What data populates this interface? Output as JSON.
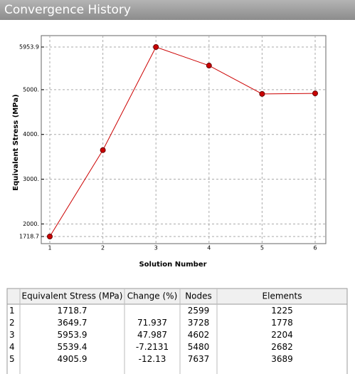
{
  "header": {
    "title": "Convergence History"
  },
  "chart_data": {
    "type": "line",
    "ylabel": "Equivalent Stress  (MPa)",
    "xlabel": "Solution Number",
    "x": [
      1,
      2,
      3,
      4,
      5,
      6
    ],
    "series": [
      {
        "name": "Equivalent Stress",
        "color": "#cc0000",
        "values": [
          1718.7,
          3649.7,
          5953.9,
          5539.4,
          4905.9,
          4917.4
        ]
      }
    ],
    "xlim": [
      1,
      6
    ],
    "xticks": [
      1,
      2,
      3,
      4,
      5,
      6
    ],
    "ylim": [
      1718.7,
      5953.9
    ],
    "yticks": [
      1718.7,
      {
        "value": 2000,
        "label": "2000."
      },
      {
        "value": 3000,
        "label": "3000."
      },
      {
        "value": 4000,
        "label": "4000."
      },
      {
        "value": 5000,
        "label": "5000."
      },
      5953.9
    ],
    "grid": true
  },
  "table": {
    "columns": [
      "Equivalent Stress (MPa)",
      "Change (%)",
      "Nodes",
      "Elements"
    ],
    "rows": [
      [
        "1",
        "1718.7",
        null,
        "2599",
        "1225"
      ],
      [
        "2",
        "3649.7",
        "71.937",
        "3728",
        "1778"
      ],
      [
        "3",
        "5953.9",
        "47.987",
        "4602",
        "2204"
      ],
      [
        "4",
        "5539.4",
        "-7.2131",
        "5480",
        "2682"
      ],
      [
        "5",
        "4905.9",
        "-12.13",
        "7637",
        "3689"
      ]
    ]
  }
}
